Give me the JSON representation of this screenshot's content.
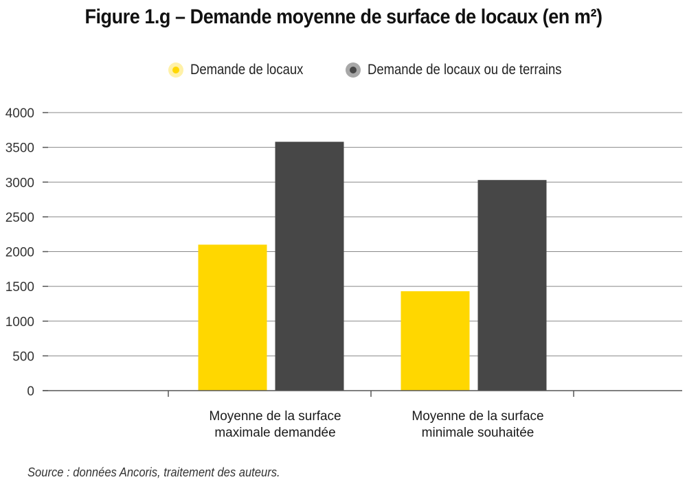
{
  "title": "Figure 1.g – Demande moyenne de surface de locaux (en m²)",
  "source": "Source : données Ancoris, traitement des auteurs.",
  "colors": {
    "series_1": "#FFD700",
    "series_2": "#474747",
    "grid": "#888888",
    "axis": "#555555"
  },
  "legend": {
    "placement": "top-center",
    "items": [
      {
        "label": "Demande de locaux",
        "color": "#FFD700",
        "halo": "#FFF1A8"
      },
      {
        "label": "Demande de locaux ou de terrains",
        "color": "#474747",
        "halo": "#A8A8A8"
      }
    ]
  },
  "chart_data": {
    "type": "bar",
    "title": "Figure 1.g – Demande moyenne de surface de locaux (en m²)",
    "categories": [
      [
        "Moyenne de la surface",
        "maximale demandée"
      ],
      [
        "Moyenne de la surface",
        "minimale souhaitée"
      ]
    ],
    "series": [
      {
        "name": "Demande de locaux",
        "values": [
          2100,
          1430
        ]
      },
      {
        "name": "Demande de locaux ou de terrains",
        "values": [
          3580,
          3030
        ]
      }
    ],
    "yticks": [
      "0",
      "500",
      "1000",
      "1500",
      "2000",
      "2500",
      "3000",
      "3500",
      "4000"
    ],
    "ylim": [
      0,
      4000
    ],
    "xlabel": "",
    "ylabel": "",
    "grid": true
  }
}
